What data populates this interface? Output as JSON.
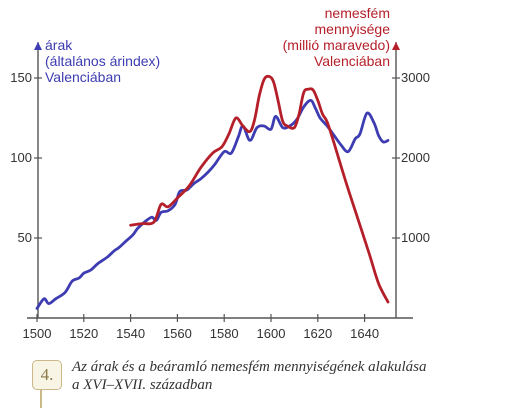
{
  "chart_data": {
    "type": "line",
    "left_axis_label": [
      "árak",
      "(általános árindex)",
      "Valenciában"
    ],
    "right_axis_label": [
      "nemesfém",
      "mennyisége",
      "(millió maravedo)",
      "Valenciában"
    ],
    "x_ticks": [
      1500,
      1520,
      1540,
      1560,
      1580,
      1600,
      1620,
      1640
    ],
    "left_ticks": [
      50,
      100,
      150
    ],
    "right_ticks": [
      1000,
      2000,
      3000
    ],
    "xlim": [
      1500,
      1652
    ],
    "ylim_left": [
      0,
      165
    ],
    "ylim_right": [
      0,
      3300
    ],
    "grid": false,
    "colors": {
      "prices": "#3d3cb2",
      "metal": "#b51f2a",
      "axis": "#555555"
    },
    "series": [
      {
        "axis": "left",
        "x": [
          1500,
          1503,
          1505,
          1508,
          1512,
          1515,
          1518,
          1520,
          1523,
          1526,
          1530,
          1533,
          1535,
          1538,
          1541,
          1543,
          1546,
          1549,
          1551,
          1553,
          1556,
          1559,
          1561,
          1564,
          1567,
          1570,
          1573,
          1576,
          1580,
          1583,
          1586,
          1588,
          1591,
          1594,
          1597,
          1600,
          1602,
          1605,
          1608,
          1611,
          1614,
          1617,
          1619,
          1621,
          1624,
          1627,
          1630,
          1633,
          1636,
          1638,
          1641,
          1644,
          1646,
          1648,
          1650
        ],
        "y": [
          6,
          12,
          9,
          12,
          16,
          23,
          25,
          28,
          30,
          34,
          38,
          42,
          44,
          48,
          52,
          56,
          60,
          63,
          61,
          66,
          67,
          71,
          79,
          80,
          84,
          87,
          91,
          96,
          104,
          103,
          113,
          120,
          111,
          119,
          120,
          118,
          126,
          119,
          120,
          124,
          132,
          136,
          131,
          125,
          120,
          114,
          108,
          104,
          112,
          115,
          128,
          122,
          114,
          110,
          111
        ]
      },
      {
        "axis": "right",
        "x": [
          1540,
          1545,
          1550,
          1553,
          1556,
          1560,
          1565,
          1570,
          1575,
          1579,
          1582,
          1585,
          1588,
          1591,
          1593,
          1595,
          1597,
          1599,
          1601,
          1603,
          1605,
          1607,
          1610,
          1612,
          1614,
          1616,
          1618,
          1620,
          1622,
          1624,
          1627,
          1632,
          1637,
          1642,
          1646,
          1650
        ],
        "y": [
          1160,
          1180,
          1200,
          1420,
          1390,
          1500,
          1650,
          1880,
          2060,
          2140,
          2300,
          2500,
          2400,
          2330,
          2480,
          2780,
          2980,
          3020,
          2960,
          2720,
          2460,
          2400,
          2380,
          2550,
          2820,
          2860,
          2850,
          2720,
          2550,
          2450,
          2180,
          1700,
          1250,
          800,
          430,
          200
        ]
      }
    ]
  },
  "caption": {
    "badge": "4.",
    "line1": "Az árak és a beáramló nemesfém mennyiségének alakulása",
    "line2": "a XVI–XVII. században"
  }
}
